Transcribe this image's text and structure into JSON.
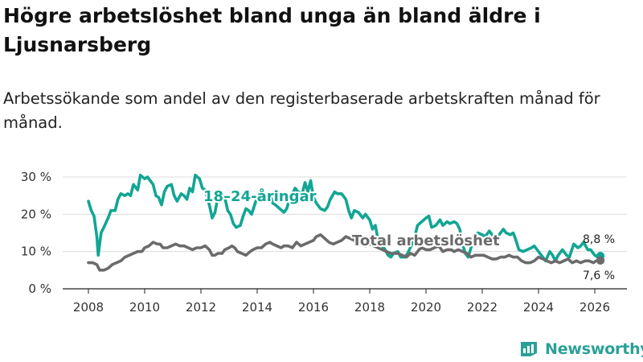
{
  "title": "Högre arbetslöshet bland unga än bland äldre i Ljusnarsberg",
  "subtitle": "Arbetssökande som andel av den registerbaserade arbetskraften månad för månad.",
  "logo": {
    "text": "Newsworthy",
    "icon": "newsworthy-logo-icon",
    "color": "#2aa198"
  },
  "colors": {
    "youth": "#12a594",
    "total": "#6b6b6b",
    "grid": "#dddddd",
    "axis": "#222222"
  },
  "chart_data": {
    "type": "line",
    "title": "Högre arbetslöshet bland unga än bland äldre i Ljusnarsberg",
    "xlabel": "",
    "ylabel": "",
    "xlim": [
      2007.7,
      2026.55
    ],
    "ylim": [
      0,
      30
    ],
    "y_ticks": [
      0,
      10,
      20,
      30
    ],
    "y_tick_labels": [
      "0 %",
      "10 %",
      "20 %",
      "30 %"
    ],
    "x_ticks": [
      2008,
      2010,
      2012,
      2014,
      2016,
      2018,
      2020,
      2022,
      2024,
      2026
    ],
    "x_tick_labels": [
      "2008",
      "2010",
      "2012",
      "2014",
      "2016",
      "2018",
      "2020",
      "2022",
      "2024",
      "2026"
    ],
    "grid": true,
    "series": [
      {
        "name": "18–24-åringar",
        "label": "18–24-åringar",
        "color": "#12a594",
        "end_label": "8,8 %",
        "points": [
          [
            2008.0,
            23.5
          ],
          [
            2008.1,
            21
          ],
          [
            2008.2,
            19.5
          ],
          [
            2008.3,
            14
          ],
          [
            2008.35,
            9
          ],
          [
            2008.45,
            15
          ],
          [
            2008.55,
            16.5
          ],
          [
            2008.7,
            19
          ],
          [
            2008.8,
            21
          ],
          [
            2008.95,
            21
          ],
          [
            2009.05,
            24
          ],
          [
            2009.15,
            25.5
          ],
          [
            2009.3,
            25
          ],
          [
            2009.4,
            25.5
          ],
          [
            2009.5,
            25
          ],
          [
            2009.6,
            28
          ],
          [
            2009.75,
            26.5
          ],
          [
            2009.85,
            30.5
          ],
          [
            2010.0,
            29.5
          ],
          [
            2010.1,
            30
          ],
          [
            2010.2,
            29
          ],
          [
            2010.3,
            28
          ],
          [
            2010.4,
            25
          ],
          [
            2010.5,
            24.5
          ],
          [
            2010.6,
            22.5
          ],
          [
            2010.7,
            26
          ],
          [
            2010.8,
            27.5
          ],
          [
            2010.95,
            28
          ],
          [
            2011.05,
            25
          ],
          [
            2011.15,
            23.5
          ],
          [
            2011.3,
            25.5
          ],
          [
            2011.4,
            25
          ],
          [
            2011.5,
            24
          ],
          [
            2011.6,
            27
          ],
          [
            2011.7,
            26
          ],
          [
            2011.8,
            30.5
          ],
          [
            2011.95,
            29.5
          ],
          [
            2012.05,
            27
          ],
          [
            2012.15,
            26.5
          ],
          [
            2012.3,
            22.5
          ],
          [
            2012.4,
            19
          ],
          [
            2012.5,
            20.5
          ],
          [
            2012.6,
            24.5
          ],
          [
            2012.7,
            25.5
          ],
          [
            2012.85,
            24.5
          ],
          [
            2012.95,
            21
          ],
          [
            2013.05,
            20
          ],
          [
            2013.15,
            17.5
          ],
          [
            2013.25,
            16.5
          ],
          [
            2013.4,
            17
          ],
          [
            2013.5,
            19.5
          ],
          [
            2013.6,
            21.5
          ],
          [
            2013.7,
            21
          ],
          [
            2013.8,
            20
          ],
          [
            2013.95,
            23.5
          ],
          [
            2014.05,
            24
          ],
          [
            2014.15,
            24.5
          ],
          [
            2014.3,
            25
          ],
          [
            2014.45,
            25.5
          ],
          [
            2014.55,
            23
          ],
          [
            2014.65,
            22.5
          ],
          [
            2014.8,
            21.5
          ],
          [
            2014.95,
            20.5
          ],
          [
            2015.05,
            21.5
          ],
          [
            2015.15,
            24
          ],
          [
            2015.25,
            25.5
          ],
          [
            2015.35,
            27
          ],
          [
            2015.45,
            26
          ],
          [
            2015.6,
            25.5
          ],
          [
            2015.7,
            28.5
          ],
          [
            2015.8,
            26
          ],
          [
            2015.9,
            29
          ],
          [
            2016.0,
            24.5
          ],
          [
            2016.1,
            23
          ],
          [
            2016.25,
            21.5
          ],
          [
            2016.4,
            21
          ],
          [
            2016.5,
            22
          ],
          [
            2016.6,
            24
          ],
          [
            2016.75,
            26
          ],
          [
            2016.85,
            25.5
          ],
          [
            2017.0,
            25.5
          ],
          [
            2017.15,
            24
          ],
          [
            2017.25,
            21
          ],
          [
            2017.35,
            19
          ],
          [
            2017.45,
            21
          ],
          [
            2017.6,
            20.5
          ],
          [
            2017.75,
            19
          ],
          [
            2017.85,
            20
          ],
          [
            2018.0,
            18.5
          ],
          [
            2018.1,
            16
          ],
          [
            2018.2,
            17
          ],
          [
            2018.3,
            13
          ],
          [
            2018.4,
            12
          ],
          [
            2018.55,
            10.5
          ],
          [
            2018.65,
            9
          ],
          [
            2018.75,
            8.5
          ],
          [
            2018.85,
            9.5
          ],
          [
            2019.0,
            10
          ],
          [
            2019.1,
            8.5
          ],
          [
            2019.25,
            8.5
          ],
          [
            2019.35,
            9.5
          ],
          [
            2019.5,
            12
          ],
          [
            2019.6,
            14
          ],
          [
            2019.7,
            17
          ],
          [
            2019.85,
            18
          ],
          [
            2020.0,
            19
          ],
          [
            2020.1,
            19.5
          ],
          [
            2020.2,
            16.5
          ],
          [
            2020.35,
            17
          ],
          [
            2020.5,
            18.5
          ],
          [
            2020.6,
            17
          ],
          [
            2020.75,
            18
          ],
          [
            2020.85,
            17.5
          ],
          [
            2021.0,
            18
          ],
          [
            2021.1,
            17.5
          ],
          [
            2021.2,
            16
          ],
          [
            2021.3,
            12
          ],
          [
            2021.4,
            9.5
          ],
          [
            2021.5,
            8.5
          ],
          [
            2021.6,
            11
          ],
          [
            2021.7,
            14
          ],
          [
            2021.85,
            15
          ],
          [
            2022.0,
            14.5
          ],
          [
            2022.1,
            14
          ],
          [
            2022.25,
            15.5
          ],
          [
            2022.4,
            14
          ],
          [
            2022.5,
            13
          ],
          [
            2022.6,
            14.5
          ],
          [
            2022.75,
            16
          ],
          [
            2022.85,
            15
          ],
          [
            2023.0,
            14.5
          ],
          [
            2023.1,
            15
          ],
          [
            2023.2,
            13
          ],
          [
            2023.3,
            10.5
          ],
          [
            2023.45,
            10
          ],
          [
            2023.6,
            10.5
          ],
          [
            2023.75,
            11
          ],
          [
            2023.85,
            11.5
          ],
          [
            2024.0,
            10
          ],
          [
            2024.15,
            8.5
          ],
          [
            2024.25,
            7.5
          ],
          [
            2024.4,
            10
          ],
          [
            2024.5,
            9
          ],
          [
            2024.6,
            7.5
          ],
          [
            2024.7,
            9
          ],
          [
            2024.85,
            10.5
          ],
          [
            2025.0,
            9
          ],
          [
            2025.1,
            8.5
          ],
          [
            2025.25,
            12
          ],
          [
            2025.4,
            11
          ],
          [
            2025.5,
            11.5
          ],
          [
            2025.6,
            12.5
          ],
          [
            2025.75,
            10.5
          ],
          [
            2025.85,
            10.5
          ],
          [
            2026.0,
            9
          ],
          [
            2026.1,
            8.5
          ],
          [
            2026.2,
            8.8
          ]
        ]
      },
      {
        "name": "Total arbetslöshet",
        "label": "Total arbetslöshet",
        "color": "#6b6b6b",
        "end_label": "7,6 %",
        "points": [
          [
            2008.0,
            7
          ],
          [
            2008.15,
            7
          ],
          [
            2008.3,
            6.5
          ],
          [
            2008.4,
            5
          ],
          [
            2008.55,
            5
          ],
          [
            2008.7,
            5.5
          ],
          [
            2008.85,
            6.5
          ],
          [
            2009.0,
            7
          ],
          [
            2009.15,
            7.5
          ],
          [
            2009.3,
            8.5
          ],
          [
            2009.45,
            9
          ],
          [
            2009.6,
            9.5
          ],
          [
            2009.75,
            10
          ],
          [
            2009.9,
            10
          ],
          [
            2010.0,
            11
          ],
          [
            2010.15,
            11.5
          ],
          [
            2010.3,
            12.5
          ],
          [
            2010.45,
            12
          ],
          [
            2010.55,
            12
          ],
          [
            2010.65,
            11
          ],
          [
            2010.8,
            11
          ],
          [
            2010.95,
            11.5
          ],
          [
            2011.1,
            12
          ],
          [
            2011.25,
            11.5
          ],
          [
            2011.4,
            11.5
          ],
          [
            2011.55,
            11
          ],
          [
            2011.7,
            10.5
          ],
          [
            2011.85,
            11
          ],
          [
            2012.0,
            11
          ],
          [
            2012.15,
            11.5
          ],
          [
            2012.3,
            10.5
          ],
          [
            2012.4,
            9
          ],
          [
            2012.5,
            9
          ],
          [
            2012.6,
            9.5
          ],
          [
            2012.75,
            9.5
          ],
          [
            2012.85,
            10.5
          ],
          [
            2013.0,
            11
          ],
          [
            2013.1,
            11.5
          ],
          [
            2013.2,
            11
          ],
          [
            2013.3,
            10
          ],
          [
            2013.45,
            9.5
          ],
          [
            2013.6,
            9
          ],
          [
            2013.75,
            10
          ],
          [
            2013.85,
            10.5
          ],
          [
            2014.0,
            11
          ],
          [
            2014.15,
            11
          ],
          [
            2014.3,
            12
          ],
          [
            2014.45,
            12.5
          ],
          [
            2014.55,
            12
          ],
          [
            2014.7,
            11.5
          ],
          [
            2014.85,
            11
          ],
          [
            2014.95,
            11.5
          ],
          [
            2015.1,
            11.5
          ],
          [
            2015.25,
            11
          ],
          [
            2015.4,
            12.5
          ],
          [
            2015.55,
            11.5
          ],
          [
            2015.7,
            12
          ],
          [
            2015.85,
            12.5
          ],
          [
            2016.0,
            13
          ],
          [
            2016.1,
            14
          ],
          [
            2016.25,
            14.5
          ],
          [
            2016.4,
            13.5
          ],
          [
            2016.55,
            12.5
          ],
          [
            2016.7,
            12
          ],
          [
            2016.85,
            12.5
          ],
          [
            2017.0,
            13
          ],
          [
            2017.15,
            14
          ],
          [
            2017.3,
            13.5
          ],
          [
            2017.45,
            13
          ],
          [
            2017.55,
            12
          ],
          [
            2017.7,
            12
          ],
          [
            2017.85,
            11.5
          ],
          [
            2018.0,
            12
          ],
          [
            2018.15,
            11.5
          ],
          [
            2018.3,
            11
          ],
          [
            2018.45,
            10.5
          ],
          [
            2018.6,
            10
          ],
          [
            2018.75,
            9.5
          ],
          [
            2018.85,
            9.5
          ],
          [
            2019.0,
            9.5
          ],
          [
            2019.15,
            9
          ],
          [
            2019.3,
            8.5
          ],
          [
            2019.45,
            9.5
          ],
          [
            2019.6,
            9
          ],
          [
            2019.75,
            10.5
          ],
          [
            2019.85,
            11
          ],
          [
            2020.0,
            10.5
          ],
          [
            2020.15,
            10.5
          ],
          [
            2020.3,
            11
          ],
          [
            2020.45,
            11.5
          ],
          [
            2020.6,
            10
          ],
          [
            2020.75,
            10.5
          ],
          [
            2020.9,
            10.5
          ],
          [
            2021.0,
            10
          ],
          [
            2021.15,
            10.5
          ],
          [
            2021.3,
            10
          ],
          [
            2021.45,
            9.5
          ],
          [
            2021.6,
            8.5
          ],
          [
            2021.75,
            9
          ],
          [
            2021.9,
            9
          ],
          [
            2022.05,
            9
          ],
          [
            2022.2,
            8.5
          ],
          [
            2022.35,
            8
          ],
          [
            2022.5,
            8
          ],
          [
            2022.65,
            8.5
          ],
          [
            2022.8,
            8.5
          ],
          [
            2022.95,
            9
          ],
          [
            2023.1,
            8.5
          ],
          [
            2023.25,
            8.5
          ],
          [
            2023.4,
            7.5
          ],
          [
            2023.55,
            7
          ],
          [
            2023.7,
            7
          ],
          [
            2023.85,
            7.5
          ],
          [
            2024.0,
            8.5
          ],
          [
            2024.15,
            8
          ],
          [
            2024.3,
            7.5
          ],
          [
            2024.45,
            7
          ],
          [
            2024.6,
            7.5
          ],
          [
            2024.75,
            7
          ],
          [
            2024.9,
            7.5
          ],
          [
            2025.05,
            8
          ],
          [
            2025.2,
            7
          ],
          [
            2025.35,
            7.5
          ],
          [
            2025.5,
            7
          ],
          [
            2025.65,
            7.5
          ],
          [
            2025.8,
            7.5
          ],
          [
            2025.95,
            7
          ],
          [
            2026.05,
            7.5
          ],
          [
            2026.2,
            7.6
          ]
        ]
      }
    ]
  }
}
